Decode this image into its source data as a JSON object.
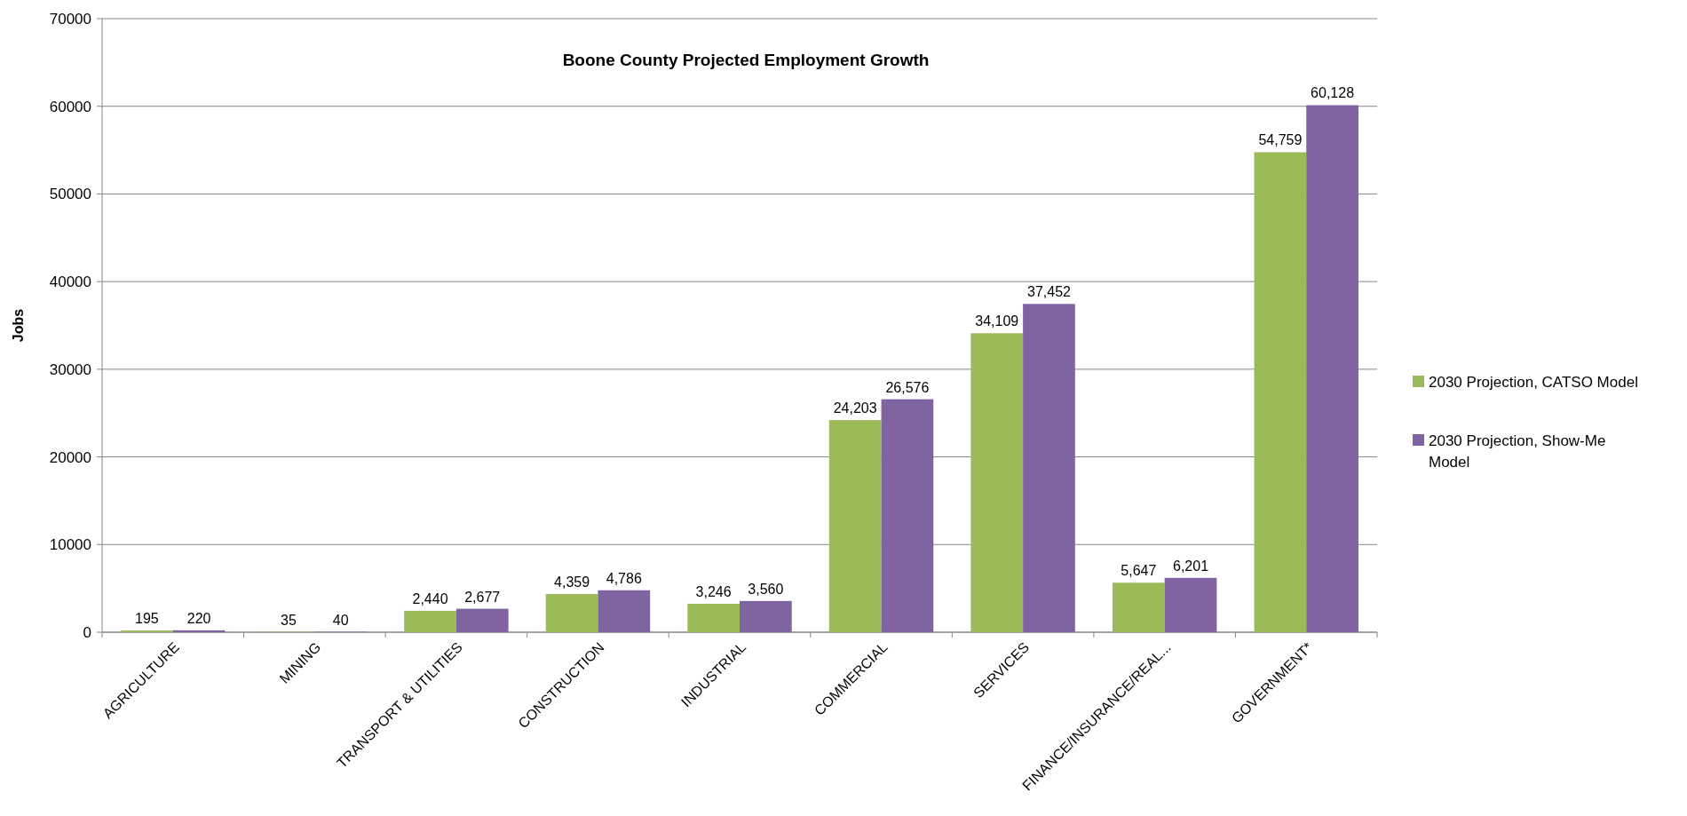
{
  "chart_data": {
    "type": "bar",
    "title": "Boone County Projected Employment Growth",
    "ylabel": "Jobs",
    "categories": [
      "AGRICULTURE",
      "MINING",
      "TRANSPORT & UTILITIES",
      "CONSTRUCTION",
      "INDUSTRIAL",
      "COMMERCIAL",
      "SERVICES",
      "FINANCE/INSURANCE/REAL...",
      "GOVERNMENT*"
    ],
    "series": [
      {
        "name": "2030 Projection, CATSO Model",
        "color": "#9bbb59",
        "values": [
          195,
          35,
          2440,
          4359,
          3246,
          24203,
          34109,
          5647,
          54759
        ],
        "value_labels": [
          "195",
          "35",
          "2,440",
          "4,359",
          "3,246",
          "24,203",
          "34,109",
          "5,647",
          "54,759"
        ]
      },
      {
        "name": "2030 Projection, Show-Me Model",
        "color": "#8064a2",
        "values": [
          220,
          40,
          2677,
          4786,
          3560,
          26576,
          37452,
          6201,
          60128
        ],
        "value_labels": [
          "220",
          "40",
          "2,677",
          "4,786",
          "3,560",
          "26,576",
          "37,452",
          "6,201",
          "60,128"
        ]
      }
    ],
    "ylim": [
      0,
      70000
    ],
    "yticks": [
      0,
      10000,
      20000,
      30000,
      40000,
      50000,
      60000,
      70000
    ],
    "grid": "y",
    "legend": "right"
  }
}
